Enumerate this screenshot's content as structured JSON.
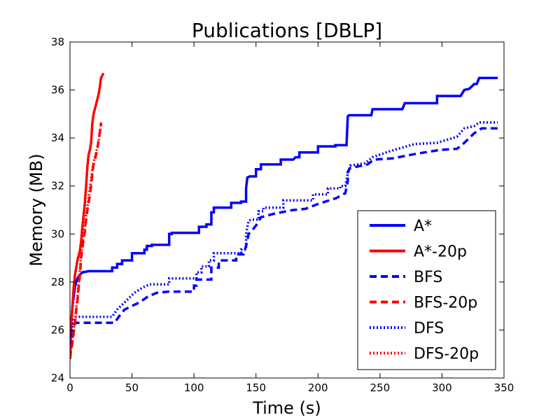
{
  "chart_data": {
    "type": "line",
    "title": "Publications [DBLP]",
    "xlabel": "Time (s)",
    "ylabel": "Memory (MB)",
    "xlim": [
      0,
      350
    ],
    "ylim": [
      24,
      38
    ],
    "xticks": [
      0,
      50,
      100,
      150,
      200,
      250,
      300,
      350
    ],
    "yticks": [
      24,
      26,
      28,
      30,
      32,
      34,
      36,
      38
    ],
    "grid": false,
    "legend_position": "bottom-right",
    "series": [
      {
        "name": "A*",
        "color": "#0000ff",
        "style": "solid",
        "x": [
          0,
          0.5,
          1,
          2,
          3,
          4,
          5,
          6,
          8,
          10,
          15,
          20,
          28,
          34,
          34,
          38,
          38,
          42,
          42,
          50,
          50,
          60,
          60,
          62,
          62,
          66,
          66,
          80,
          80,
          82,
          82,
          90,
          90,
          98,
          100,
          104,
          104,
          110,
          110,
          114,
          114,
          116,
          116,
          124,
          124,
          130,
          130,
          138,
          138,
          142,
          142,
          143,
          145,
          150,
          150,
          154,
          154,
          167,
          168,
          170,
          170,
          180,
          182,
          185,
          185,
          200,
          200,
          214,
          214,
          220,
          220,
          223,
          224,
          225,
          228,
          242,
          243,
          244,
          245,
          260,
          260,
          268,
          270,
          282,
          282,
          296,
          296,
          315,
          315,
          318,
          318,
          322,
          322,
          326,
          326,
          328,
          328,
          330,
          330,
          345
        ],
        "y": [
          24.8,
          25.6,
          26.3,
          27.0,
          27.4,
          27.8,
          28.0,
          28.15,
          28.3,
          28.4,
          28.45,
          28.45,
          28.45,
          28.45,
          28.6,
          28.6,
          28.75,
          28.75,
          28.9,
          28.9,
          29.2,
          29.2,
          29.35,
          29.35,
          29.5,
          29.5,
          29.55,
          29.55,
          30.0,
          30.0,
          30.05,
          30.05,
          30.05,
          30.05,
          30.05,
          30.05,
          30.3,
          30.3,
          30.4,
          30.4,
          30.9,
          30.9,
          31.1,
          31.1,
          31.1,
          31.1,
          31.3,
          31.3,
          31.35,
          31.35,
          31.9,
          32.35,
          32.4,
          32.4,
          32.7,
          32.7,
          32.9,
          32.9,
          32.9,
          32.9,
          33.1,
          33.1,
          33.2,
          33.2,
          33.4,
          33.4,
          33.65,
          33.65,
          33.7,
          33.7,
          33.7,
          33.7,
          34.9,
          34.95,
          34.95,
          34.95,
          34.95,
          35.2,
          35.2,
          35.2,
          35.2,
          35.2,
          35.45,
          35.45,
          35.45,
          35.45,
          35.75,
          35.75,
          35.75,
          36.0,
          36.0,
          36.05,
          36.05,
          36.25,
          36.25,
          36.25,
          36.25,
          36.5,
          36.5,
          36.5
        ]
      },
      {
        "name": "A*-20p",
        "color": "#ff0000",
        "style": "solid",
        "x": [
          0,
          1,
          2,
          3,
          4,
          5,
          6,
          7,
          8,
          9,
          10,
          11,
          12,
          13,
          14,
          15,
          16,
          17,
          18,
          19,
          20,
          21,
          22,
          23,
          24,
          25,
          26,
          27
        ],
        "y": [
          24.8,
          26.2,
          27.0,
          27.8,
          28.3,
          28.6,
          28.9,
          29.1,
          29.3,
          29.7,
          30.3,
          30.8,
          31.3,
          32.0,
          32.8,
          33.3,
          33.5,
          33.8,
          34.6,
          35.0,
          35.2,
          35.4,
          35.6,
          35.8,
          36.1,
          36.5,
          36.6,
          36.7
        ]
      },
      {
        "name": "BFS",
        "color": "#0000ff",
        "style": "dashed",
        "x": [
          0,
          1,
          2,
          3,
          5,
          10,
          20,
          30,
          36,
          40,
          40,
          44,
          44,
          50,
          50,
          56,
          56,
          63,
          63,
          70,
          70,
          80,
          80,
          100,
          100,
          102,
          102,
          108,
          108,
          114,
          114,
          120,
          120,
          134,
          134,
          140,
          140,
          143,
          144,
          146,
          146,
          150,
          150,
          154,
          154,
          165,
          165,
          180,
          180,
          190,
          190,
          200,
          200,
          215,
          215,
          220,
          220,
          222,
          224,
          224,
          226,
          226,
          240,
          240,
          245,
          245,
          260,
          260,
          280,
          280,
          298,
          298,
          312,
          312,
          316,
          316,
          320,
          320,
          326,
          326,
          332,
          332,
          345
        ],
        "y": [
          24.8,
          25.5,
          26.0,
          26.2,
          26.3,
          26.3,
          26.3,
          26.3,
          26.3,
          26.6,
          26.6,
          26.85,
          26.85,
          27.0,
          27.0,
          27.15,
          27.15,
          27.4,
          27.4,
          27.55,
          27.55,
          27.6,
          27.6,
          27.6,
          27.85,
          27.85,
          28.1,
          28.1,
          28.1,
          28.1,
          28.6,
          28.6,
          28.9,
          28.9,
          29.15,
          29.15,
          29.15,
          29.7,
          30.0,
          30.1,
          30.1,
          30.35,
          30.35,
          30.7,
          30.7,
          30.85,
          30.85,
          31.0,
          31.0,
          31.05,
          31.05,
          31.25,
          31.25,
          31.5,
          31.5,
          31.65,
          31.65,
          31.7,
          32.2,
          32.6,
          32.75,
          32.75,
          32.9,
          32.9,
          33.1,
          33.1,
          33.15,
          33.15,
          33.35,
          33.35,
          33.5,
          33.5,
          33.55,
          33.55,
          33.7,
          33.7,
          33.9,
          33.9,
          34.2,
          34.2,
          34.4,
          34.4,
          34.4
        ]
      },
      {
        "name": "BFS-20p",
        "color": "#ff0000",
        "style": "dashed",
        "x": [
          0,
          1,
          2,
          3,
          4,
          5,
          6,
          7,
          8,
          9,
          10,
          11,
          12,
          13,
          14,
          15,
          16,
          17,
          18,
          19,
          20,
          21,
          22,
          23,
          24,
          25,
          26
        ],
        "y": [
          24.8,
          25.2,
          25.5,
          25.9,
          26.3,
          26.8,
          27.2,
          27.8,
          28.3,
          29.0,
          29.4,
          29.8,
          30.1,
          30.6,
          31.0,
          31.3,
          31.6,
          32.0,
          32.5,
          32.9,
          33.1,
          33.3,
          33.5,
          33.9,
          34.2,
          34.6,
          34.6
        ]
      },
      {
        "name": "DFS",
        "color": "#0000ff",
        "style": "dotted",
        "x": [
          0,
          1,
          2,
          3,
          5,
          10,
          20,
          30,
          34,
          38,
          38,
          42,
          42,
          46,
          46,
          52,
          52,
          58,
          58,
          64,
          64,
          80,
          80,
          102,
          102,
          106,
          106,
          112,
          112,
          116,
          116,
          130,
          130,
          138,
          138,
          142,
          142,
          144,
          146,
          152,
          152,
          156,
          156,
          172,
          172,
          184,
          184,
          196,
          196,
          208,
          208,
          218,
          218,
          222,
          224,
          226,
          226,
          238,
          238,
          244,
          244,
          258,
          258,
          278,
          278,
          296,
          296,
          312,
          312,
          318,
          318,
          326,
          326,
          330,
          330,
          345
        ],
        "y": [
          24.8,
          25.6,
          26.2,
          26.4,
          26.55,
          26.55,
          26.55,
          26.55,
          26.55,
          26.85,
          26.85,
          27.05,
          27.05,
          27.25,
          27.25,
          27.55,
          27.55,
          27.75,
          27.75,
          27.9,
          27.9,
          27.9,
          28.15,
          28.15,
          28.4,
          28.4,
          28.65,
          28.65,
          28.9,
          28.9,
          29.2,
          29.2,
          29.2,
          29.2,
          29.35,
          29.35,
          30.0,
          30.55,
          30.6,
          30.6,
          30.95,
          30.95,
          31.1,
          31.1,
          31.4,
          31.4,
          31.4,
          31.4,
          31.65,
          31.65,
          31.9,
          31.9,
          32.0,
          32.0,
          32.5,
          32.85,
          32.85,
          32.95,
          32.95,
          33.2,
          33.2,
          33.45,
          33.45,
          33.75,
          33.75,
          33.8,
          33.8,
          34.05,
          34.05,
          34.4,
          34.4,
          34.5,
          34.5,
          34.65,
          34.65,
          34.65
        ]
      },
      {
        "name": "DFS-20p",
        "color": "#ff0000",
        "style": "dotted",
        "x": [
          0,
          1,
          2,
          3,
          4,
          5,
          6,
          7,
          8,
          9,
          10,
          11,
          12,
          13,
          14,
          15,
          16,
          17,
          18,
          19,
          20,
          21,
          22,
          23,
          24,
          25,
          26
        ],
        "y": [
          24.8,
          25.3,
          25.6,
          26.0,
          26.4,
          26.9,
          27.4,
          28.0,
          28.5,
          29.1,
          29.6,
          30.0,
          30.3,
          30.8,
          31.1,
          31.5,
          31.9,
          32.3,
          32.7,
          33.0,
          33.2,
          33.4,
          33.6,
          33.8,
          34.2,
          34.6,
          34.6
        ]
      }
    ]
  }
}
